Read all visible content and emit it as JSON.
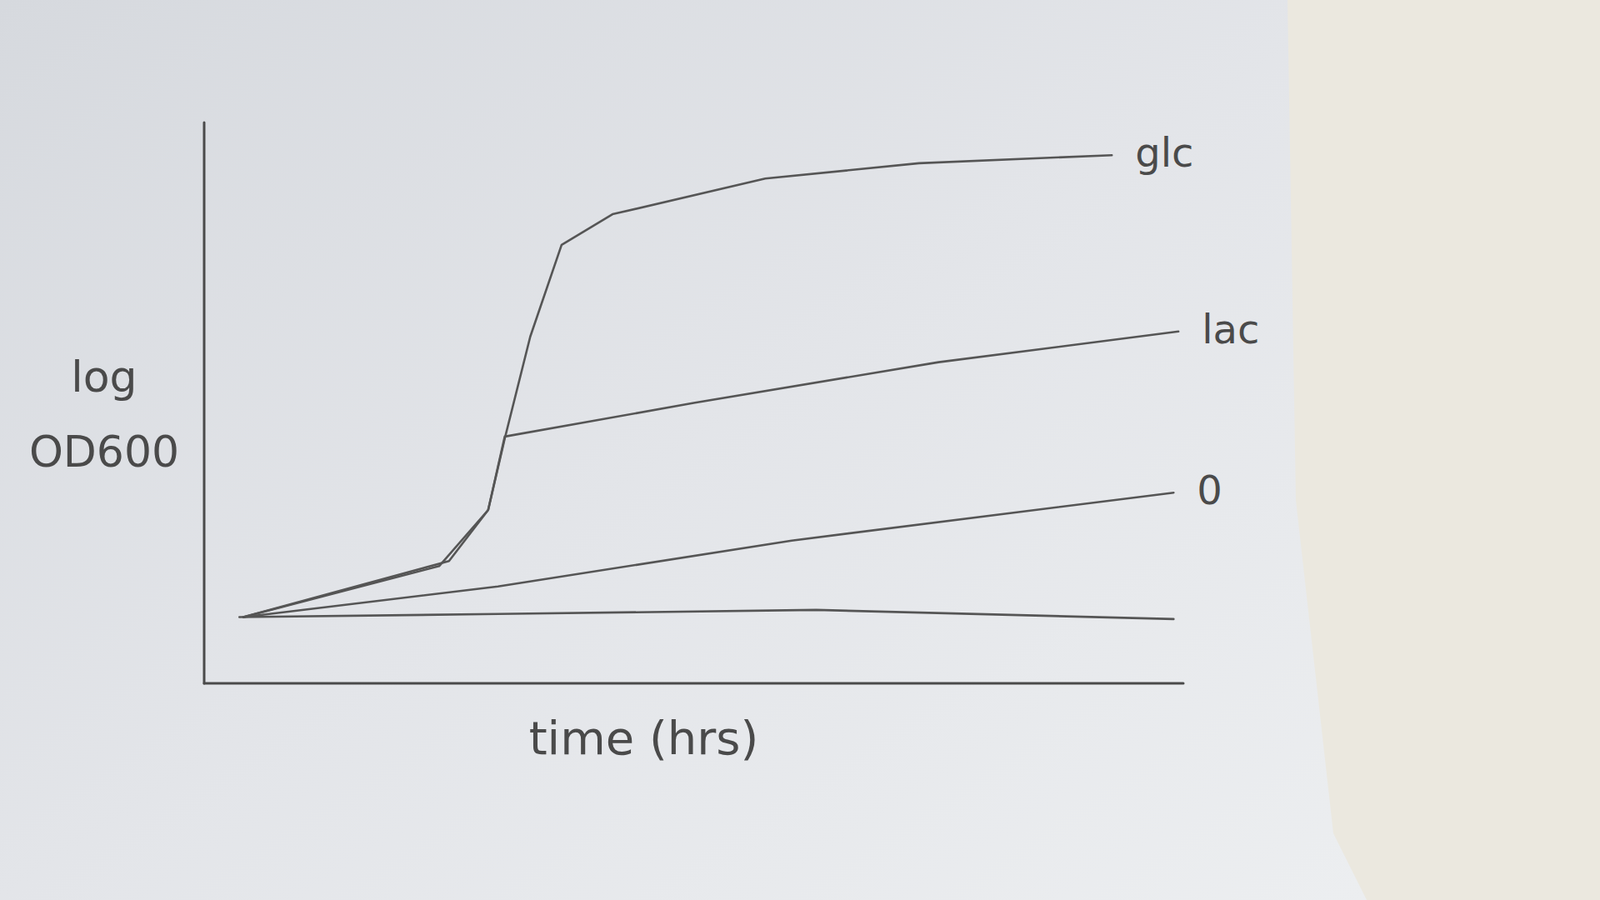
{
  "chart_data": {
    "type": "line",
    "x_label": "time (hrs)",
    "y_label": "log OD600",
    "log": "y",
    "tick_labels": false,
    "xlim": [
      0,
      10
    ],
    "ylim": [
      0,
      11
    ],
    "series": [
      {
        "name": "glc",
        "color": "#555555",
        "x": [
          0.4,
          2.4,
          2.9,
          3.07,
          3.33,
          3.65,
          4.17,
          5.73,
          7.3,
          9.27
        ],
        "values": [
          1.3,
          2.3,
          3.4,
          4.8,
          6.8,
          8.6,
          9.2,
          9.9,
          10.2,
          10.36
        ]
      },
      {
        "name": "lac",
        "color": "#555555",
        "x": [
          0.4,
          2.5,
          2.9,
          3.07,
          5.0,
          7.5,
          9.95
        ],
        "values": [
          1.3,
          2.4,
          3.4,
          4.84,
          5.5,
          6.3,
          6.9
        ]
      },
      {
        "name": "0",
        "color": "#555555",
        "x": [
          0.4,
          3.0,
          6.0,
          9.9
        ],
        "values": [
          1.3,
          1.9,
          2.8,
          3.74
        ]
      },
      {
        "color": "#555555",
        "x": [
          0.36,
          3.0,
          6.25,
          9.9
        ],
        "values": [
          1.3,
          1.36,
          1.44,
          1.26
        ]
      }
    ]
  }
}
